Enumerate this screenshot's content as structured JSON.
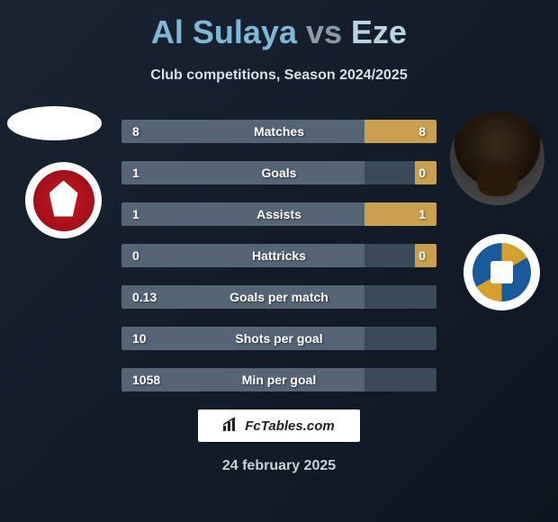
{
  "title": {
    "player1": "Al Sulaya",
    "vs": "vs",
    "player2": "Eze"
  },
  "subtitle": "Club competitions, Season 2024/2025",
  "stats": [
    {
      "label": "Matches",
      "left_val": "8",
      "right_val": "8",
      "left_pct": 77,
      "right_pct": 23
    },
    {
      "label": "Goals",
      "left_val": "1",
      "right_val": "0",
      "left_pct": 77,
      "right_pct": 7
    },
    {
      "label": "Assists",
      "left_val": "1",
      "right_val": "1",
      "left_pct": 77,
      "right_pct": 23
    },
    {
      "label": "Hattricks",
      "left_val": "0",
      "right_val": "0",
      "left_pct": 77,
      "right_pct": 7
    },
    {
      "label": "Goals per match",
      "left_val": "0.13",
      "right_val": "",
      "left_pct": 77,
      "right_pct": 0
    },
    {
      "label": "Shots per goal",
      "left_val": "10",
      "right_val": "",
      "left_pct": 77,
      "right_pct": 0
    },
    {
      "label": "Min per goal",
      "left_val": "1058",
      "right_val": "",
      "left_pct": 77,
      "right_pct": 0
    }
  ],
  "colors": {
    "bar_bg": "#3a4a5a",
    "bar_left": "#556575",
    "bar_right": "#c8a050",
    "title_p1": "#7fb8d4",
    "title_vs": "#8a9aa8",
    "title_p2": "#b8d4e0",
    "club_left_bg": "#c81820",
    "club_right_accent": "#1a5a9a"
  },
  "footer": {
    "brand": "FcTables.com",
    "date": "24 february 2025"
  }
}
